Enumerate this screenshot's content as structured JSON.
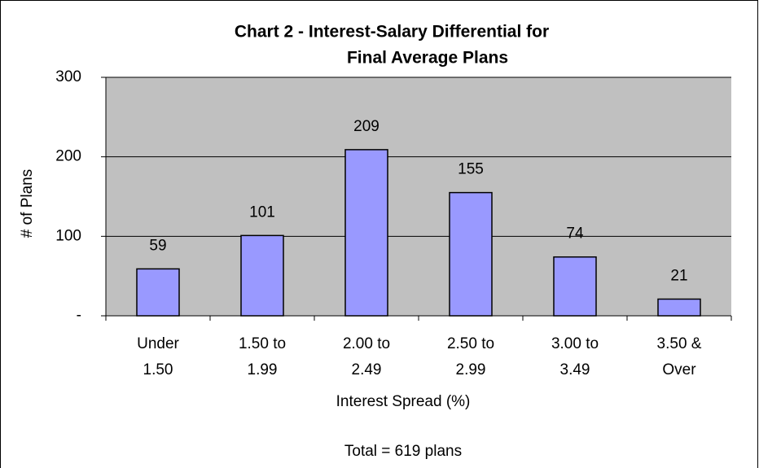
{
  "chart_data": {
    "type": "bar",
    "title": [
      "Chart 2 - Interest-Salary Differential for",
      "Final Average Plans"
    ],
    "categories": [
      [
        "Under",
        "1.50"
      ],
      [
        "1.50 to",
        "1.99"
      ],
      [
        "2.00 to",
        "2.49"
      ],
      [
        "2.50 to",
        "2.99"
      ],
      [
        "3.00 to",
        "3.49"
      ],
      [
        "3.50 &",
        "Over"
      ]
    ],
    "values": [
      59,
      101,
      209,
      155,
      74,
      21
    ],
    "color": "#9999ff",
    "plot_background": "#c0c0c0",
    "ylim": [
      0,
      300
    ],
    "yticks": [
      {
        "value": 0,
        "label": "-"
      },
      100,
      200,
      300
    ],
    "grid": true,
    "y_label": "# of Plans",
    "x_label": "Interest Spread (%)",
    "note": "`",
    "footnote": "Total = 619 plans"
  }
}
